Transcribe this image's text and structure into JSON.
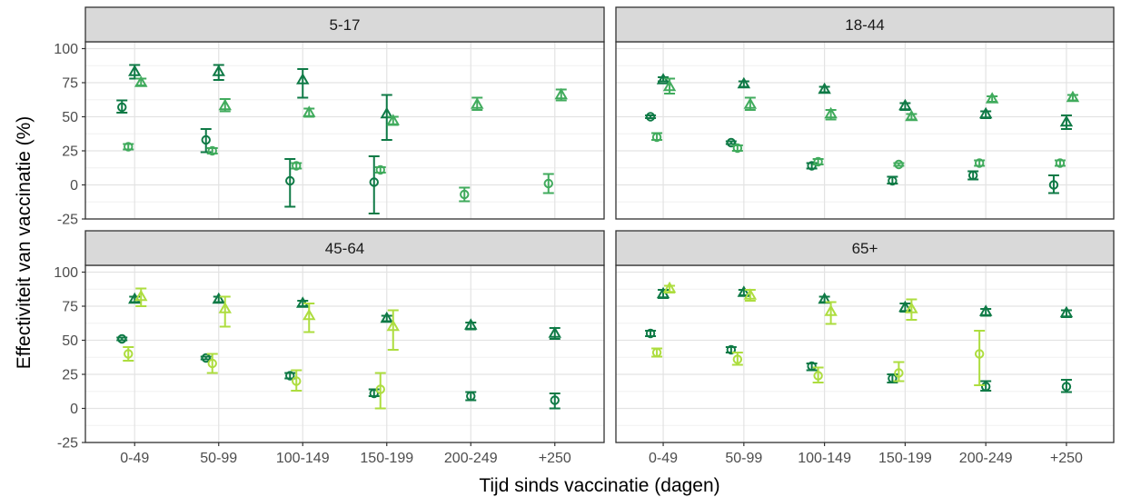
{
  "chart_data": {
    "type": "scatter",
    "subtype": "faceted point estimates with error bars",
    "xlabel": "Tijd sinds vaccinatie (dagen)",
    "ylabel": "Effectiviteit van vaccinatie (%)",
    "categories": [
      "0-49",
      "50-99",
      "100-149",
      "150-199",
      "200-249",
      "+250"
    ],
    "yticks": [
      "100",
      "75",
      "50",
      "25",
      "0",
      "-25"
    ],
    "ylim": [
      -25,
      105
    ],
    "grid": true,
    "legend": "none",
    "colors": {
      "dark": "#0f7a46",
      "mid": "#41ab5d",
      "light": "#addd3f"
    },
    "facets": [
      {
        "label": "5-17",
        "series": [
          {
            "shape": "circle",
            "color": "dark",
            "offset": -1,
            "points": [
              {
                "x": "0-49",
                "y": 57,
                "lo": 53,
                "hi": 62
              },
              {
                "x": "50-99",
                "y": 33,
                "lo": 24,
                "hi": 41
              },
              {
                "x": "100-149",
                "y": 3,
                "lo": -16,
                "hi": 19
              },
              {
                "x": "150-199",
                "y": 2,
                "lo": -21,
                "hi": 21
              }
            ]
          },
          {
            "shape": "triangle",
            "color": "dark",
            "offset": 0,
            "points": [
              {
                "x": "0-49",
                "y": 83,
                "lo": 78,
                "hi": 88
              },
              {
                "x": "50-99",
                "y": 83,
                "lo": 77,
                "hi": 88
              },
              {
                "x": "100-149",
                "y": 77,
                "lo": 64,
                "hi": 85
              },
              {
                "x": "150-199",
                "y": 52,
                "lo": 33,
                "hi": 66
              }
            ]
          },
          {
            "shape": "circle",
            "color": "mid",
            "offset": -0.5,
            "points": [
              {
                "x": "0-49",
                "y": 28,
                "lo": 26,
                "hi": 30
              },
              {
                "x": "50-99",
                "y": 25,
                "lo": 23,
                "hi": 27
              },
              {
                "x": "100-149",
                "y": 14,
                "lo": 12,
                "hi": 16
              },
              {
                "x": "150-199",
                "y": 11,
                "lo": 9,
                "hi": 13
              },
              {
                "x": "200-249",
                "y": -7,
                "lo": -12,
                "hi": -2
              },
              {
                "x": "+250",
                "y": 1,
                "lo": -6,
                "hi": 8
              }
            ]
          },
          {
            "shape": "triangle",
            "color": "mid",
            "offset": 0.5,
            "points": [
              {
                "x": "0-49",
                "y": 75,
                "lo": 73,
                "hi": 78
              },
              {
                "x": "50-99",
                "y": 58,
                "lo": 54,
                "hi": 63
              },
              {
                "x": "100-149",
                "y": 53,
                "lo": 50,
                "hi": 56
              },
              {
                "x": "150-199",
                "y": 47,
                "lo": 44,
                "hi": 50
              },
              {
                "x": "200-249",
                "y": 59,
                "lo": 55,
                "hi": 64
              },
              {
                "x": "+250",
                "y": 66,
                "lo": 62,
                "hi": 70
              }
            ]
          }
        ]
      },
      {
        "label": "18-44",
        "series": [
          {
            "shape": "circle",
            "color": "dark",
            "offset": -1,
            "points": [
              {
                "x": "0-49",
                "y": 50,
                "lo": 49,
                "hi": 51
              },
              {
                "x": "50-99",
                "y": 31,
                "lo": 30,
                "hi": 32
              },
              {
                "x": "100-149",
                "y": 14,
                "lo": 12,
                "hi": 16
              },
              {
                "x": "150-199",
                "y": 3,
                "lo": 1,
                "hi": 6
              },
              {
                "x": "200-249",
                "y": 7,
                "lo": 4,
                "hi": 10
              },
              {
                "x": "+250",
                "y": 0,
                "lo": -6,
                "hi": 7
              }
            ]
          },
          {
            "shape": "triangle",
            "color": "dark",
            "offset": 0,
            "points": [
              {
                "x": "0-49",
                "y": 77,
                "lo": 76,
                "hi": 79
              },
              {
                "x": "50-99",
                "y": 74,
                "lo": 72,
                "hi": 76
              },
              {
                "x": "100-149",
                "y": 70,
                "lo": 68,
                "hi": 72
              },
              {
                "x": "150-199",
                "y": 58,
                "lo": 55,
                "hi": 60
              },
              {
                "x": "200-249",
                "y": 52,
                "lo": 49,
                "hi": 54
              },
              {
                "x": "+250",
                "y": 46,
                "lo": 41,
                "hi": 51
              }
            ]
          },
          {
            "shape": "circle",
            "color": "mid",
            "offset": -0.5,
            "points": [
              {
                "x": "0-49",
                "y": 35,
                "lo": 33,
                "hi": 38
              },
              {
                "x": "50-99",
                "y": 27,
                "lo": 25,
                "hi": 29
              },
              {
                "x": "100-149",
                "y": 17,
                "lo": 15,
                "hi": 19
              },
              {
                "x": "150-199",
                "y": 15,
                "lo": 14,
                "hi": 16
              },
              {
                "x": "200-249",
                "y": 16,
                "lo": 14,
                "hi": 18
              },
              {
                "x": "+250",
                "y": 16,
                "lo": 14,
                "hi": 18
              }
            ]
          },
          {
            "shape": "triangle",
            "color": "mid",
            "offset": 0.5,
            "points": [
              {
                "x": "0-49",
                "y": 72,
                "lo": 67,
                "hi": 78
              },
              {
                "x": "50-99",
                "y": 59,
                "lo": 55,
                "hi": 64
              },
              {
                "x": "100-149",
                "y": 52,
                "lo": 48,
                "hi": 55
              },
              {
                "x": "150-199",
                "y": 50,
                "lo": 48,
                "hi": 52
              },
              {
                "x": "200-249",
                "y": 63,
                "lo": 61,
                "hi": 65
              },
              {
                "x": "+250",
                "y": 64,
                "lo": 62,
                "hi": 66
              }
            ]
          }
        ]
      },
      {
        "label": "45-64",
        "series": [
          {
            "shape": "circle",
            "color": "dark",
            "offset": -1,
            "points": [
              {
                "x": "0-49",
                "y": 51,
                "lo": 50,
                "hi": 52
              },
              {
                "x": "50-99",
                "y": 37,
                "lo": 36,
                "hi": 38
              },
              {
                "x": "100-149",
                "y": 24,
                "lo": 22,
                "hi": 26
              },
              {
                "x": "150-199",
                "y": 11,
                "lo": 9,
                "hi": 14
              }
            ]
          },
          {
            "shape": "triangle",
            "color": "dark",
            "offset": 0,
            "points": [
              {
                "x": "0-49",
                "y": 80,
                "lo": 78,
                "hi": 82
              },
              {
                "x": "50-99",
                "y": 80,
                "lo": 78,
                "hi": 82
              },
              {
                "x": "100-149",
                "y": 77,
                "lo": 75,
                "hi": 79
              },
              {
                "x": "150-199",
                "y": 66,
                "lo": 64,
                "hi": 68
              },
              {
                "x": "200-249",
                "y": 61,
                "lo": 58,
                "hi": 63
              },
              {
                "x": "+250",
                "y": 55,
                "lo": 51,
                "hi": 59
              }
            ]
          },
          {
            "shape": "circle",
            "color": "dark",
            "offset": 0,
            "points": [
              {
                "x": "200-249",
                "y": 9,
                "lo": 6,
                "hi": 12
              },
              {
                "x": "+250",
                "y": 6,
                "lo": 0,
                "hi": 11
              }
            ]
          },
          {
            "shape": "circle",
            "color": "light",
            "offset": -0.5,
            "points": [
              {
                "x": "0-49",
                "y": 40,
                "lo": 35,
                "hi": 45
              },
              {
                "x": "50-99",
                "y": 33,
                "lo": 26,
                "hi": 40
              },
              {
                "x": "100-149",
                "y": 20,
                "lo": 13,
                "hi": 28
              },
              {
                "x": "150-199",
                "y": 14,
                "lo": 0,
                "hi": 26
              }
            ]
          },
          {
            "shape": "triangle",
            "color": "light",
            "offset": 0.5,
            "points": [
              {
                "x": "0-49",
                "y": 82,
                "lo": 75,
                "hi": 88
              },
              {
                "x": "50-99",
                "y": 73,
                "lo": 60,
                "hi": 82
              },
              {
                "x": "100-149",
                "y": 68,
                "lo": 56,
                "hi": 77
              },
              {
                "x": "150-199",
                "y": 60,
                "lo": 43,
                "hi": 72
              }
            ]
          }
        ]
      },
      {
        "label": "65+",
        "series": [
          {
            "shape": "circle",
            "color": "dark",
            "offset": -1,
            "points": [
              {
                "x": "0-49",
                "y": 55,
                "lo": 53,
                "hi": 57
              },
              {
                "x": "50-99",
                "y": 43,
                "lo": 41,
                "hi": 45
              },
              {
                "x": "100-149",
                "y": 31,
                "lo": 28,
                "hi": 33
              },
              {
                "x": "150-199",
                "y": 22,
                "lo": 19,
                "hi": 25
              }
            ]
          },
          {
            "shape": "triangle",
            "color": "dark",
            "offset": 0,
            "points": [
              {
                "x": "0-49",
                "y": 84,
                "lo": 81,
                "hi": 87
              },
              {
                "x": "50-99",
                "y": 85,
                "lo": 83,
                "hi": 87
              },
              {
                "x": "100-149",
                "y": 80,
                "lo": 78,
                "hi": 82
              },
              {
                "x": "150-199",
                "y": 74,
                "lo": 71,
                "hi": 77
              },
              {
                "x": "200-249",
                "y": 71,
                "lo": 68,
                "hi": 73
              },
              {
                "x": "+250",
                "y": 70,
                "lo": 67,
                "hi": 72
              }
            ]
          },
          {
            "shape": "circle",
            "color": "dark",
            "offset": 0,
            "points": [
              {
                "x": "200-249",
                "y": 16,
                "lo": 13,
                "hi": 20
              },
              {
                "x": "+250",
                "y": 16,
                "lo": 12,
                "hi": 21
              }
            ]
          },
          {
            "shape": "circle",
            "color": "light",
            "offset": -0.5,
            "points": [
              {
                "x": "0-49",
                "y": 41,
                "lo": 38,
                "hi": 44
              },
              {
                "x": "50-99",
                "y": 36,
                "lo": 32,
                "hi": 41
              },
              {
                "x": "100-149",
                "y": 24,
                "lo": 19,
                "hi": 30
              },
              {
                "x": "150-199",
                "y": 26,
                "lo": 20,
                "hi": 34
              },
              {
                "x": "200-249",
                "y": 40,
                "lo": 17,
                "hi": 57
              }
            ]
          },
          {
            "shape": "triangle",
            "color": "light",
            "offset": 0.5,
            "points": [
              {
                "x": "0-49",
                "y": 88,
                "lo": 85,
                "hi": 90
              },
              {
                "x": "50-99",
                "y": 83,
                "lo": 79,
                "hi": 87
              },
              {
                "x": "100-149",
                "y": 71,
                "lo": 62,
                "hi": 78
              },
              {
                "x": "150-199",
                "y": 73,
                "lo": 65,
                "hi": 80
              }
            ]
          }
        ]
      }
    ]
  }
}
